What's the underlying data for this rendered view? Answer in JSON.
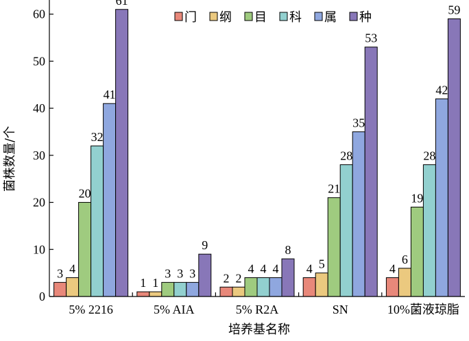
{
  "chart_data": {
    "type": "bar",
    "title": "",
    "xlabel": "培养基名称",
    "ylabel": "菌株数量/个",
    "ylim": [
      0,
      63
    ],
    "yticks": [
      0,
      10,
      20,
      30,
      40,
      50,
      60
    ],
    "grid": false,
    "legend_position": "top",
    "categories": [
      "5% 2216",
      "5% AIA",
      "5% R2A",
      "SN",
      "10%菌液琼脂"
    ],
    "series": [
      {
        "name": "门",
        "color": "#e8887a",
        "values": [
          3,
          1,
          2,
          4,
          4
        ]
      },
      {
        "name": "纲",
        "color": "#ebc97f",
        "values": [
          4,
          1,
          2,
          5,
          6
        ]
      },
      {
        "name": "目",
        "color": "#9fcb7f",
        "values": [
          20,
          3,
          4,
          21,
          19
        ]
      },
      {
        "name": "科",
        "color": "#92d0cf",
        "values": [
          32,
          3,
          4,
          28,
          28
        ]
      },
      {
        "name": "属",
        "color": "#8fa7df",
        "values": [
          41,
          3,
          4,
          35,
          42
        ]
      },
      {
        "name": "种",
        "color": "#8877b8",
        "values": [
          61,
          9,
          8,
          53,
          59
        ]
      }
    ]
  }
}
